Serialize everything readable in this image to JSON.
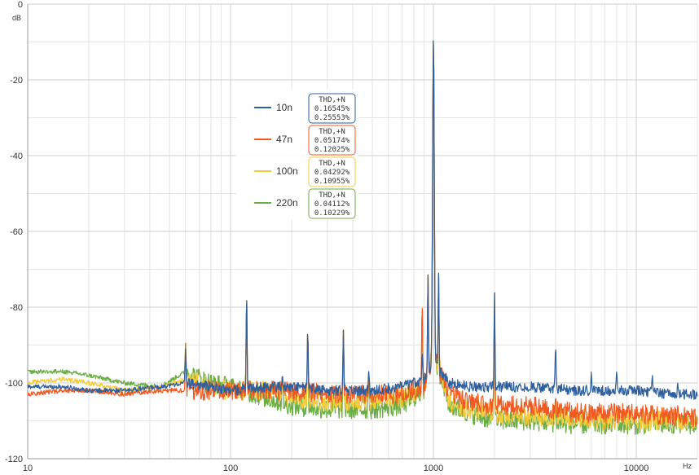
{
  "chart_data": {
    "type": "line",
    "title": "",
    "xlabel": "Hz",
    "ylabel": "dB",
    "x_scale": "log",
    "xlim": [
      10,
      20000
    ],
    "ylim": [
      -120,
      0
    ],
    "x_ticks": [
      10,
      100,
      1000,
      10000
    ],
    "x_tick_labels": [
      "10",
      "100",
      "1000",
      "10000"
    ],
    "y_ticks": [
      0,
      -20,
      -40,
      -60,
      -80,
      -100,
      -120
    ],
    "y_tick_labels": [
      "0",
      "-20",
      "-40",
      "-60",
      "-80",
      "-100",
      "-120"
    ],
    "grid": true,
    "legend_placement": "top-center",
    "legend_box_title": "THD,+N",
    "peaks": [
      {
        "freq": 60,
        "db": -91
      },
      {
        "freq": 120,
        "db": -77
      },
      {
        "freq": 180,
        "db": -98
      },
      {
        "freq": 240,
        "db": -86
      },
      {
        "freq": 360,
        "db": -86
      },
      {
        "freq": 480,
        "db": -97
      },
      {
        "freq": 880,
        "db": -79
      },
      {
        "freq": 940,
        "db": -71
      },
      {
        "freq": 1000,
        "db": -9
      },
      {
        "freq": 1060,
        "db": -71
      },
      {
        "freq": 2000,
        "db": -76
      },
      {
        "freq": 4000,
        "db": -90
      },
      {
        "freq": 6000,
        "db": -97
      },
      {
        "freq": 8000,
        "db": -97
      },
      {
        "freq": 12000,
        "db": -98
      },
      {
        "freq": 16000,
        "db": -100
      }
    ],
    "series": [
      {
        "name": "10n",
        "color": "#2e5f9e",
        "thd": "0.16545%",
        "thdn": "0.25553%",
        "x": [
          10,
          15,
          20,
          30,
          45,
          60,
          80,
          100,
          150,
          200,
          300,
          500,
          700,
          900,
          1000,
          1200,
          1500,
          2000,
          3000,
          5000,
          7000,
          10000,
          15000,
          20000
        ],
        "y": [
          -101,
          -101,
          -102,
          -102,
          -101,
          -100,
          -101,
          -102,
          -101,
          -101,
          -102,
          -102,
          -101,
          -99,
          -95,
          -100,
          -101,
          -101,
          -101,
          -102,
          -102,
          -102,
          -103,
          -103
        ]
      },
      {
        "name": "47n",
        "color": "#f05a22",
        "thd": "0.05174%",
        "thdn": "0.12025%",
        "x": [
          10,
          15,
          20,
          30,
          45,
          60,
          80,
          100,
          150,
          200,
          300,
          500,
          700,
          900,
          1000,
          1200,
          1500,
          2000,
          3000,
          5000,
          7000,
          10000,
          15000,
          20000
        ],
        "y": [
          -103,
          -102,
          -102,
          -103,
          -102,
          -102,
          -102,
          -102,
          -102,
          -102,
          -103,
          -103,
          -103,
          -101,
          -93,
          -103,
          -105,
          -106,
          -106,
          -108,
          -108,
          -108,
          -109,
          -109
        ]
      },
      {
        "name": "100n",
        "color": "#f5cc3b",
        "thd": "0.04292%",
        "thdn": "0.10955%",
        "x": [
          10,
          15,
          20,
          30,
          45,
          60,
          80,
          100,
          150,
          200,
          300,
          500,
          700,
          900,
          1000,
          1200,
          1500,
          2000,
          3000,
          5000,
          7000,
          10000,
          15000,
          20000
        ],
        "y": [
          -100,
          -99,
          -100,
          -102,
          -101,
          -99,
          -101,
          -102,
          -102,
          -104,
          -105,
          -105,
          -104,
          -101,
          -92,
          -105,
          -107,
          -108,
          -109,
          -109,
          -110,
          -110,
          -110,
          -110
        ]
      },
      {
        "name": "220n",
        "color": "#6aad45",
        "thd": "0.04112%",
        "thdn": "0.10229%",
        "x": [
          10,
          15,
          20,
          30,
          45,
          60,
          80,
          100,
          150,
          200,
          300,
          500,
          700,
          900,
          1000,
          1200,
          1500,
          2000,
          3000,
          5000,
          7000,
          10000,
          15000,
          20000
        ],
        "y": [
          -97,
          -97,
          -98,
          -100,
          -101,
          -97,
          -100,
          -101,
          -104,
          -106,
          -107,
          -107,
          -106,
          -102,
          -93,
          -106,
          -108,
          -110,
          -110,
          -111,
          -111,
          -111,
          -111,
          -111
        ]
      }
    ]
  }
}
